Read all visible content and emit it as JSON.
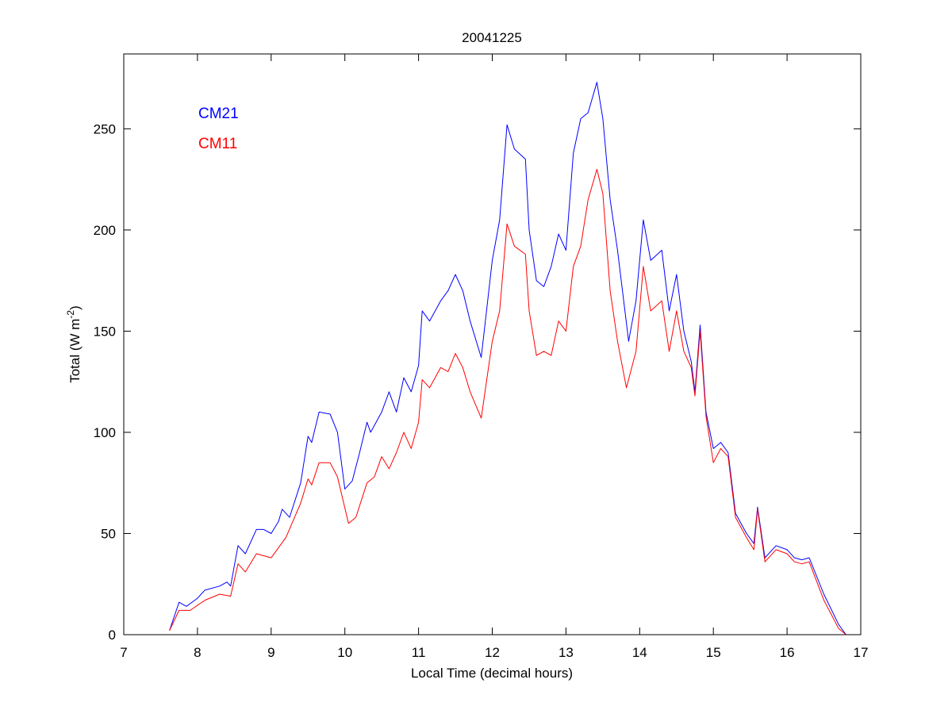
{
  "chart_data": {
    "type": "line",
    "title": "20041225",
    "xlabel": "Local Time (decimal hours)",
    "ylabel": {
      "main": "Total (W m",
      "sup": "-2",
      "end": ")"
    },
    "xlim": [
      7,
      17
    ],
    "ylim": [
      0,
      287
    ],
    "xticks": [
      7,
      8,
      9,
      10,
      11,
      12,
      13,
      14,
      15,
      16,
      17
    ],
    "yticks": [
      0,
      50,
      100,
      150,
      200,
      250
    ],
    "grid": false,
    "legend_placement": "top-left",
    "series": [
      {
        "name": "CM21",
        "color": "#0000ff",
        "x": [
          7.62,
          7.75,
          7.85,
          8.0,
          8.1,
          8.3,
          8.4,
          8.45,
          8.55,
          8.65,
          8.8,
          8.9,
          9.0,
          9.1,
          9.15,
          9.25,
          9.4,
          9.5,
          9.55,
          9.65,
          9.8,
          9.9,
          10.0,
          10.1,
          10.2,
          10.3,
          10.35,
          10.5,
          10.6,
          10.7,
          10.8,
          10.9,
          11.0,
          11.05,
          11.15,
          11.3,
          11.4,
          11.5,
          11.6,
          11.7,
          11.85,
          12.0,
          12.1,
          12.2,
          12.3,
          12.45,
          12.5,
          12.6,
          12.7,
          12.8,
          12.9,
          13.0,
          13.1,
          13.2,
          13.3,
          13.42,
          13.5,
          13.6,
          13.7,
          13.85,
          13.95,
          14.05,
          14.15,
          14.3,
          14.4,
          14.5,
          14.6,
          14.7,
          14.75,
          14.82,
          14.9,
          15.0,
          15.1,
          15.2,
          15.3,
          15.45,
          15.55,
          15.6,
          15.7,
          15.85,
          16.0,
          16.1,
          16.2,
          16.3,
          16.5,
          16.7,
          16.8
        ],
        "y": [
          2,
          16,
          14,
          18,
          22,
          24,
          26,
          24,
          44,
          40,
          52,
          52,
          50,
          56,
          62,
          58,
          75,
          98,
          95,
          110,
          109,
          100,
          72,
          76,
          90,
          105,
          100,
          110,
          120,
          110,
          127,
          120,
          133,
          160,
          155,
          165,
          170,
          178,
          170,
          155,
          137,
          185,
          205,
          252,
          240,
          235,
          200,
          175,
          172,
          182,
          198,
          190,
          238,
          255,
          258,
          273,
          255,
          215,
          190,
          145,
          165,
          205,
          185,
          190,
          160,
          178,
          150,
          135,
          120,
          153,
          110,
          92,
          95,
          90,
          60,
          50,
          45,
          63,
          38,
          44,
          42,
          38,
          37,
          38,
          20,
          5,
          0
        ]
      },
      {
        "name": "CM11",
        "color": "#ff0000",
        "x": [
          7.62,
          7.75,
          7.9,
          8.1,
          8.3,
          8.45,
          8.55,
          8.65,
          8.8,
          9.0,
          9.2,
          9.4,
          9.5,
          9.55,
          9.65,
          9.8,
          9.9,
          10.05,
          10.15,
          10.3,
          10.4,
          10.5,
          10.6,
          10.7,
          10.8,
          10.9,
          11.0,
          11.05,
          11.15,
          11.3,
          11.4,
          11.5,
          11.6,
          11.7,
          11.85,
          12.0,
          12.1,
          12.2,
          12.3,
          12.45,
          12.5,
          12.6,
          12.7,
          12.8,
          12.9,
          13.0,
          13.1,
          13.2,
          13.3,
          13.42,
          13.5,
          13.6,
          13.7,
          13.82,
          13.95,
          14.05,
          14.15,
          14.3,
          14.4,
          14.5,
          14.6,
          14.7,
          14.75,
          14.82,
          14.9,
          15.0,
          15.1,
          15.2,
          15.3,
          15.45,
          15.55,
          15.6,
          15.7,
          15.85,
          16.0,
          16.1,
          16.2,
          16.3,
          16.5,
          16.7,
          16.8
        ],
        "y": [
          2,
          12,
          12,
          17,
          20,
          19,
          35,
          31,
          40,
          38,
          48,
          65,
          77,
          74,
          85,
          85,
          78,
          55,
          58,
          75,
          78,
          88,
          82,
          90,
          100,
          92,
          105,
          126,
          122,
          132,
          130,
          139,
          132,
          120,
          107,
          145,
          160,
          203,
          192,
          188,
          160,
          138,
          140,
          138,
          155,
          150,
          182,
          192,
          215,
          230,
          218,
          170,
          145,
          122,
          140,
          182,
          160,
          165,
          140,
          160,
          140,
          132,
          118,
          150,
          108,
          85,
          92,
          88,
          58,
          48,
          42,
          62,
          36,
          42,
          40,
          36,
          35,
          36,
          17,
          3,
          0
        ]
      }
    ]
  }
}
